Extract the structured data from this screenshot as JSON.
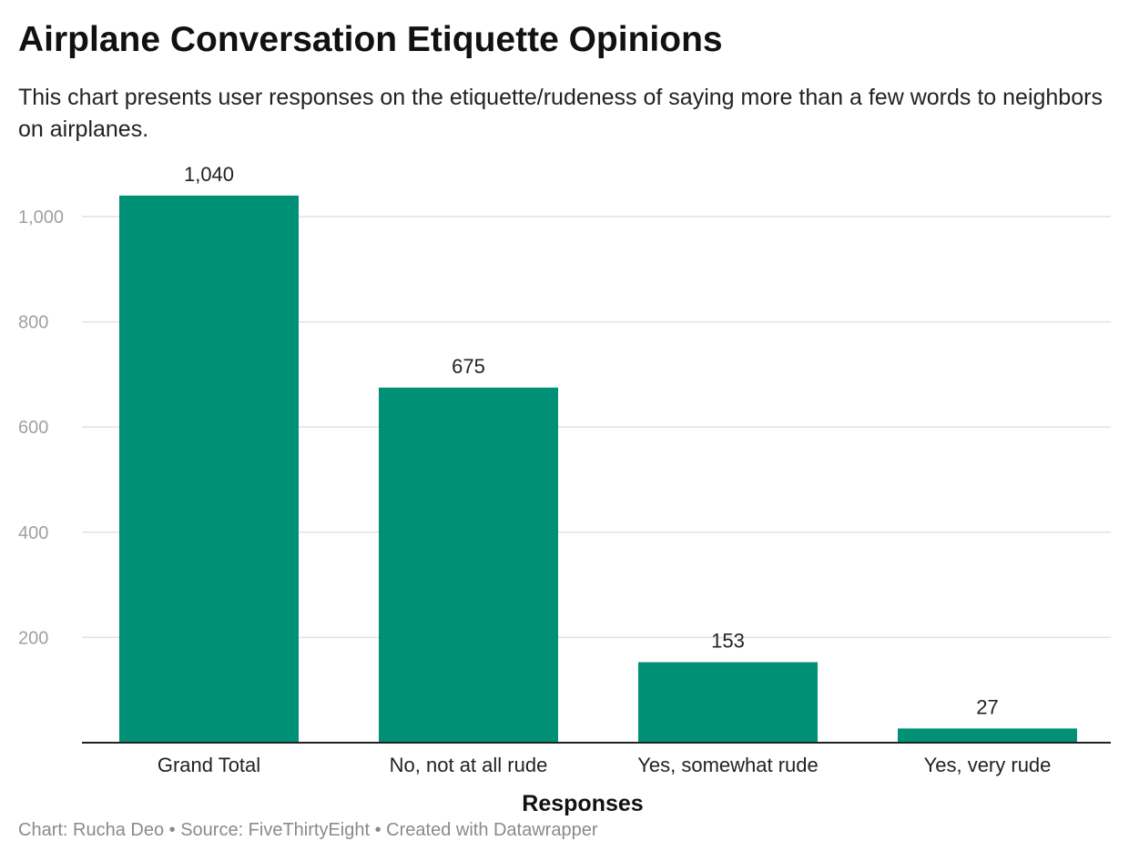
{
  "chart_data": {
    "type": "bar",
    "title": "Airplane Conversation Etiquette Opinions",
    "subtitle": "This chart presents user responses on the etiquette/rudeness of saying more than a few words to neighbors on airplanes.",
    "xlabel": "Responses",
    "ylabel": "",
    "categories": [
      "Grand Total",
      "No, not at all rude",
      "Yes, somewhat rude",
      "Yes, very rude"
    ],
    "values": [
      1040,
      675,
      153,
      27
    ],
    "value_labels": [
      "1,040",
      "675",
      "153",
      "27"
    ],
    "yticks": [
      200,
      400,
      600,
      800,
      1000
    ],
    "ytick_labels": [
      "200",
      "400",
      "600",
      "800",
      "1,000"
    ],
    "ylim": [
      0,
      1000
    ],
    "grid": true,
    "legend": "none",
    "bar_color": "#009075"
  },
  "footer": "Chart: Rucha Deo • Source: FiveThirtyEight • Created with Datawrapper"
}
